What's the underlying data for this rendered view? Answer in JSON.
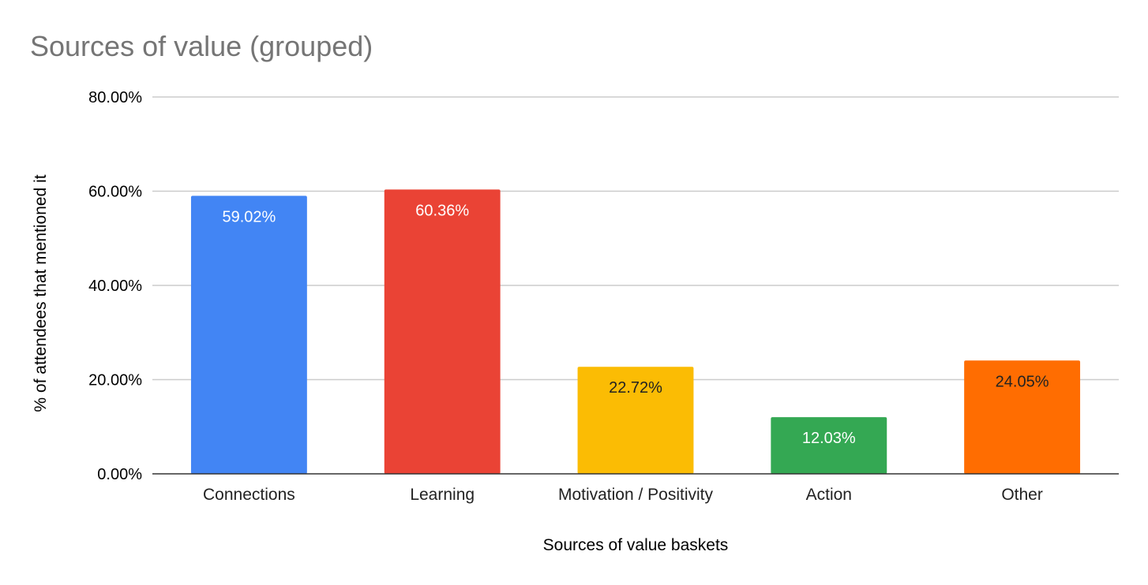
{
  "chart_data": {
    "type": "bar",
    "title": "Sources of value (grouped)",
    "xlabel": "Sources of value baskets",
    "ylabel": "% of attendees that mentioned it",
    "ylim": [
      0,
      80
    ],
    "yticks": [
      0,
      20,
      40,
      60,
      80
    ],
    "ytick_labels": [
      "0.00%",
      "20.00%",
      "40.00%",
      "60.00%",
      "80.00%"
    ],
    "grid": true,
    "categories": [
      "Connections",
      "Learning",
      "Motivation / Positivity",
      "Action",
      "Other"
    ],
    "values": [
      59.02,
      60.36,
      22.72,
      12.03,
      24.05
    ],
    "data_labels": [
      "59.02%",
      "60.36%",
      "22.72%",
      "12.03%",
      "24.05%"
    ],
    "colors": [
      "#4285f4",
      "#ea4335",
      "#fbbc04",
      "#34a853",
      "#ff6d01"
    ],
    "label_colors": [
      "#ffffff",
      "#ffffff",
      "#222222",
      "#ffffff",
      "#222222"
    ]
  }
}
